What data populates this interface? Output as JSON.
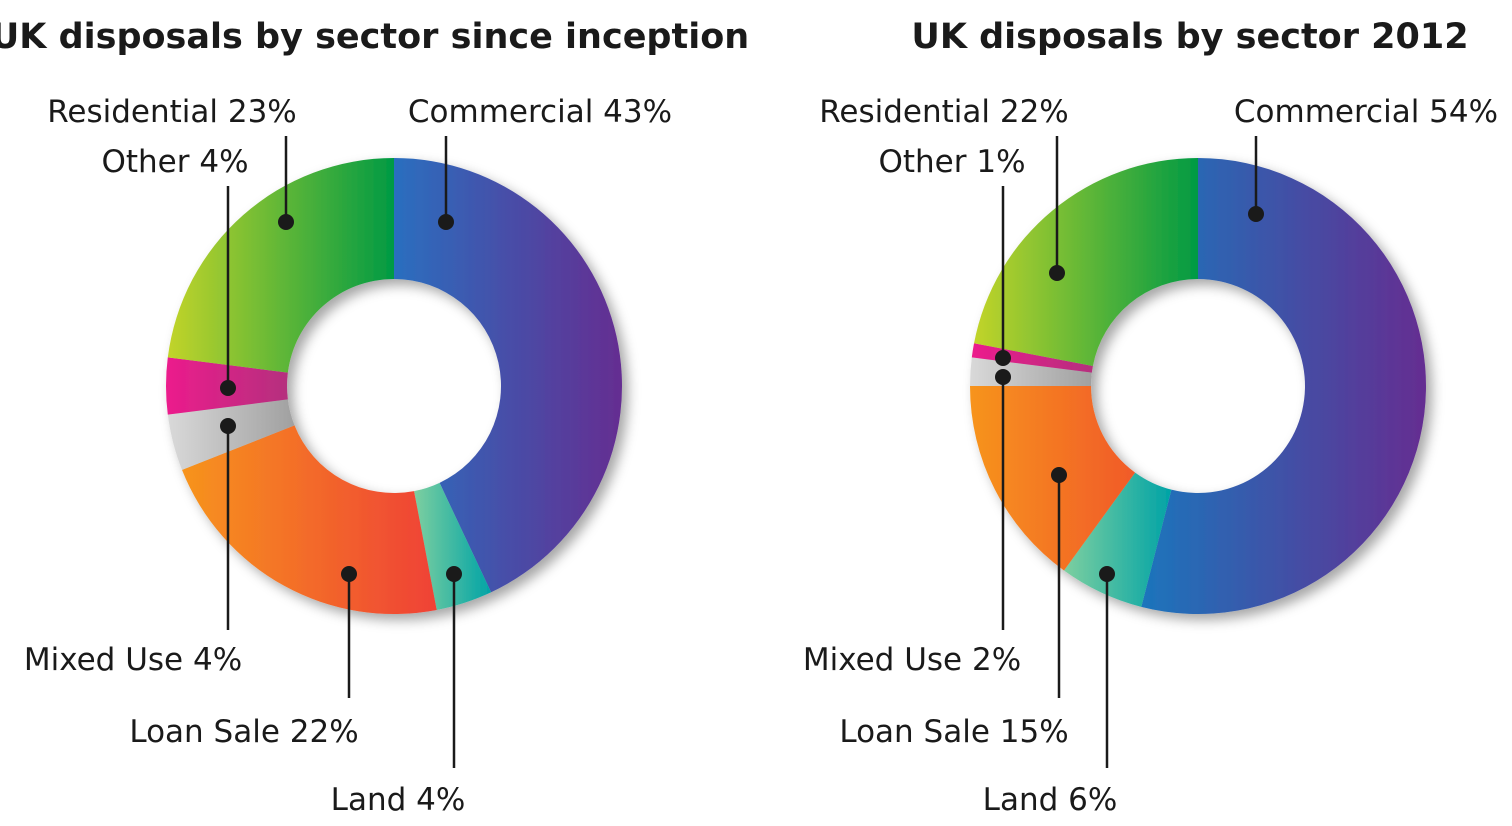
{
  "chart_data": [
    {
      "type": "pie",
      "title": "UK disposals by sector since inception",
      "categories": [
        "Commercial",
        "Land",
        "Loan Sale",
        "Mixed Use",
        "Other",
        "Residential"
      ],
      "values": [
        43,
        4,
        22,
        4,
        4,
        23
      ],
      "labels": [
        "Commercial 43%",
        "Land 4%",
        "Loan Sale 22%",
        "Mixed Use 4%",
        "Other 4%",
        "Residential 23%"
      ],
      "donut": true,
      "legend": "none",
      "colors": {
        "Commercial": [
          "#2a6fbf",
          "#652d91"
        ],
        "Land": [
          "#7dcfa0",
          "#00a3a6"
        ],
        "Loan Sale": [
          "#f7941d",
          "#ef4136"
        ],
        "Mixed Use": [
          "#d9d9d9",
          "#a0a0a0"
        ],
        "Other": [
          "#ec1c8c",
          "#b5307e"
        ],
        "Residential": [
          "#c2d42a",
          "#009a44"
        ]
      }
    },
    {
      "type": "pie",
      "title": "UK disposals by sector 2012",
      "categories": [
        "Commercial",
        "Land",
        "Loan Sale",
        "Mixed Use",
        "Other",
        "Residential"
      ],
      "values": [
        54,
        6,
        15,
        2,
        1,
        22
      ],
      "labels": [
        "Commercial 54%",
        "Land 6%",
        "Loan Sale 15%",
        "Mixed Use 2%",
        "Other 1%",
        "Residential 22%"
      ],
      "donut": true,
      "legend": "none",
      "colors": {
        "Commercial": [
          "#1c75bc",
          "#652d91"
        ],
        "Land": [
          "#7dcfa0",
          "#00a3a6"
        ],
        "Loan Sale": [
          "#f7941d",
          "#f15a29"
        ],
        "Mixed Use": [
          "#d9d9d9",
          "#a0a0a0"
        ],
        "Other": [
          "#ec1c8c",
          "#b5307e"
        ],
        "Residential": [
          "#c2d42a",
          "#009a44"
        ]
      }
    }
  ]
}
